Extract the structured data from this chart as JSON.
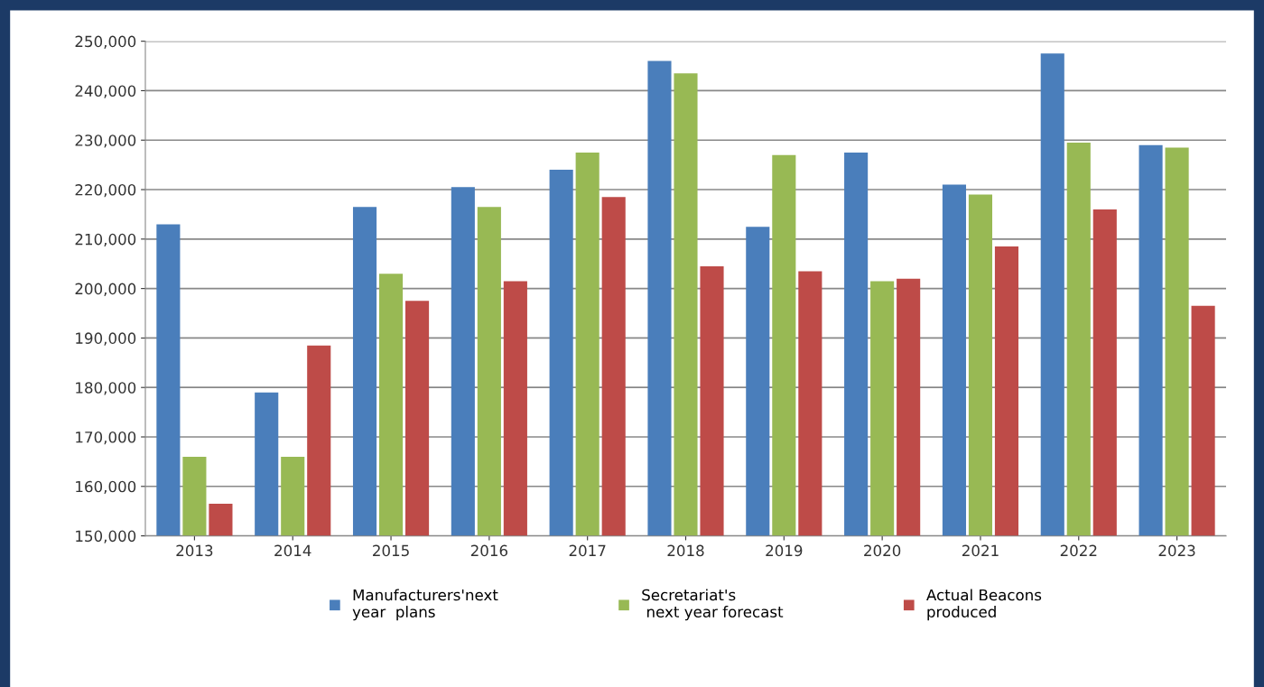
{
  "chart_data": {
    "type": "bar",
    "categories": [
      "2013",
      "2014",
      "2015",
      "2016",
      "2017",
      "2018",
      "2019",
      "2020",
      "2021",
      "2022",
      "2023"
    ],
    "series": [
      {
        "name": "Manufacturers'next\nyear  plans",
        "color": "#4a7ebb",
        "values": [
          213000,
          179000,
          216500,
          220500,
          224000,
          246000,
          212500,
          227500,
          221000,
          247500,
          229000
        ]
      },
      {
        "name": "Secretariat's\n next year forecast",
        "color": "#98b954",
        "values": [
          166000,
          166000,
          203000,
          216500,
          227500,
          243500,
          227000,
          201500,
          219000,
          229500,
          228500
        ]
      },
      {
        "name": "Actual Beacons\nproduced",
        "color": "#be4b48",
        "values": [
          156500,
          188500,
          197500,
          201500,
          218500,
          204500,
          203500,
          202000,
          208500,
          216000,
          196500
        ]
      }
    ],
    "ylim": [
      150000,
      250000
    ],
    "yticks": [
      {
        "value": 150000,
        "label": "150,000"
      },
      {
        "value": 160000,
        "label": "160,000"
      },
      {
        "value": 170000,
        "label": "170,000"
      },
      {
        "value": 180000,
        "label": "180,000"
      },
      {
        "value": 190000,
        "label": "190,000"
      },
      {
        "value": 200000,
        "label": "200,000"
      },
      {
        "value": 210000,
        "label": "210,000"
      },
      {
        "value": 220000,
        "label": "220,000"
      },
      {
        "value": 230000,
        "label": "230,000"
      },
      {
        "value": 240000,
        "label": "240,000"
      },
      {
        "value": 250000,
        "label": "250,000"
      }
    ],
    "grid": "y",
    "legend": "bottom"
  }
}
